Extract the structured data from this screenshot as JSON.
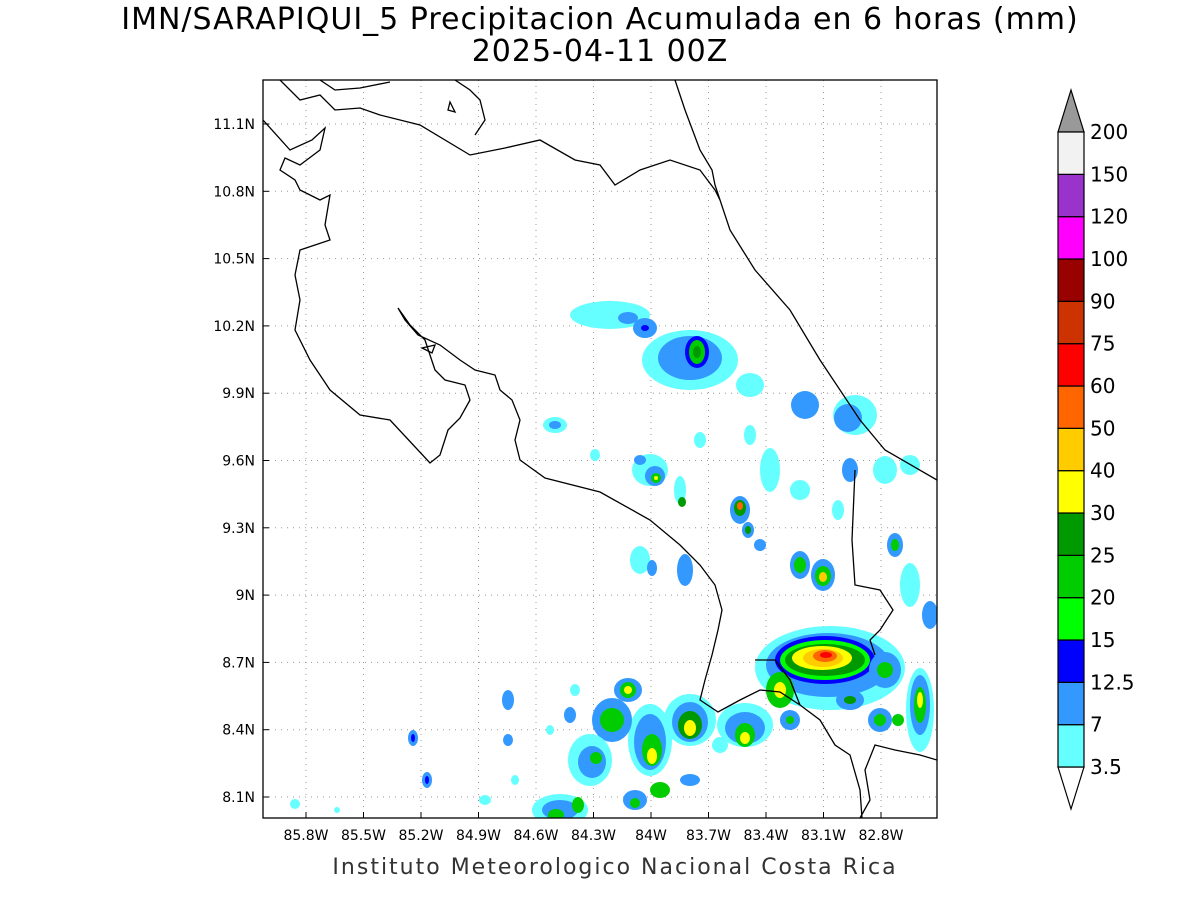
{
  "header": {
    "title": "IMN/SARAPIQUI_5 Precipitacion Acumulada en 6 horas (mm)",
    "subtitle": "2025-04-11 00Z"
  },
  "footer": {
    "credit": "Instituto Meteorologico Nacional Costa Rica"
  },
  "axes": {
    "lat_ticks": [
      "11.1N",
      "10.8N",
      "10.5N",
      "10.2N",
      "9.9N",
      "9.6N",
      "9.3N",
      "9N",
      "8.7N",
      "8.4N",
      "8.1N"
    ],
    "lon_ticks": [
      "85.8W",
      "85.5W",
      "85.2W",
      "84.9W",
      "84.6W",
      "84.3W",
      "84W",
      "83.7W",
      "83.4W",
      "83.1W",
      "82.8W"
    ],
    "lat_range": [
      8.0,
      11.3
    ],
    "lon_range": [
      -86.0,
      -83.0
    ],
    "grid": "dotted"
  },
  "colorbar": {
    "labels": [
      "3.5",
      "7",
      "12.5",
      "15",
      "20",
      "25",
      "30",
      "40",
      "50",
      "60",
      "75",
      "90",
      "100",
      "120",
      "150",
      "200"
    ],
    "colors": [
      "#66ffff",
      "#3399ff",
      "#0000ff",
      "#00ff00",
      "#00cc00",
      "#009900",
      "#ffff00",
      "#ffcc00",
      "#ff6600",
      "#ff0000",
      "#cc3300",
      "#990000",
      "#ff00ff",
      "#9933cc",
      "#f2f2f2",
      "#999999"
    ]
  }
}
